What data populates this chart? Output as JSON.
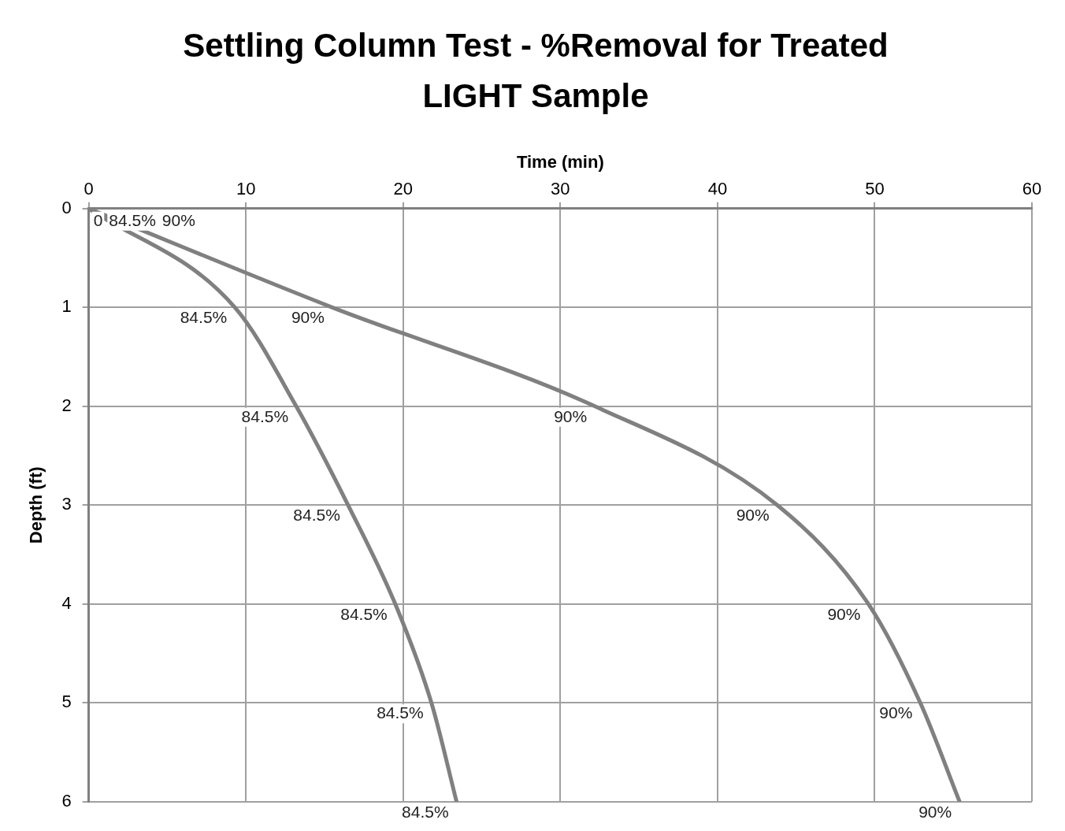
{
  "chart_data": {
    "type": "line",
    "title": "Settling Column Test - %Removal for Treated LIGHT Sample",
    "xlabel": "Time (min)",
    "ylabel": "Depth (ft)",
    "xlim": [
      0,
      60
    ],
    "xticks": [
      0,
      10,
      20,
      30,
      40,
      50,
      60
    ],
    "ylim": [
      6,
      0
    ],
    "yticks": [
      0,
      1,
      2,
      3,
      4,
      5,
      6
    ],
    "grid": true,
    "legend": false,
    "marker": "none",
    "line_style": "solid",
    "series": [
      {
        "color": "#808080",
        "x": [
          0,
          9.3,
          13.2,
          16.5,
          19.5,
          21.8,
          23.4
        ],
        "values": [
          0,
          1,
          2,
          3,
          4,
          5,
          6
        ],
        "name": "84.5%"
      },
      {
        "color": "#808080",
        "x": [
          0,
          15.5,
          32.2,
          43.8,
          49.6,
          52.9,
          55.4
        ],
        "values": [
          0,
          1,
          2,
          3,
          4,
          5,
          6
        ],
        "name": "90%"
      }
    ],
    "annotations": [
      "0"
    ]
  }
}
